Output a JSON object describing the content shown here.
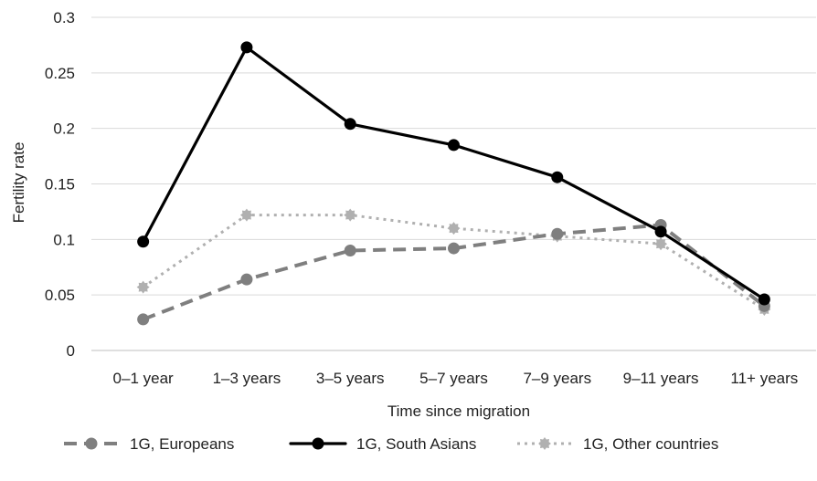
{
  "chart_data": {
    "type": "line",
    "xlabel": "Time since migration",
    "ylabel": "Fertility rate",
    "ylim": [
      0,
      0.3
    ],
    "yticks": [
      "0",
      "0.05",
      "0.1",
      "0.15",
      "0.2",
      "0.25",
      "0.3"
    ],
    "grid": true,
    "legend_position": "bottom",
    "categories": [
      "0–1 year",
      "1–3 years",
      "3–5 years",
      "5–7 years",
      "7–9 years",
      "9–11 years",
      "11+ years"
    ],
    "series": [
      {
        "name": "1G, Europeans",
        "style": "dashed",
        "color": "#7f7f7f",
        "values": [
          0.028,
          0.064,
          0.09,
          0.092,
          0.105,
          0.113,
          0.04
        ]
      },
      {
        "name": "1G, South Asians",
        "style": "solid",
        "color": "#000000",
        "values": [
          0.098,
          0.273,
          0.204,
          0.185,
          0.156,
          0.107,
          0.046
        ]
      },
      {
        "name": "1G, Other countries",
        "style": "dotted",
        "color": "#b0b0b0",
        "values": [
          0.057,
          0.122,
          0.122,
          0.11,
          0.103,
          0.096,
          0.037
        ]
      }
    ]
  }
}
